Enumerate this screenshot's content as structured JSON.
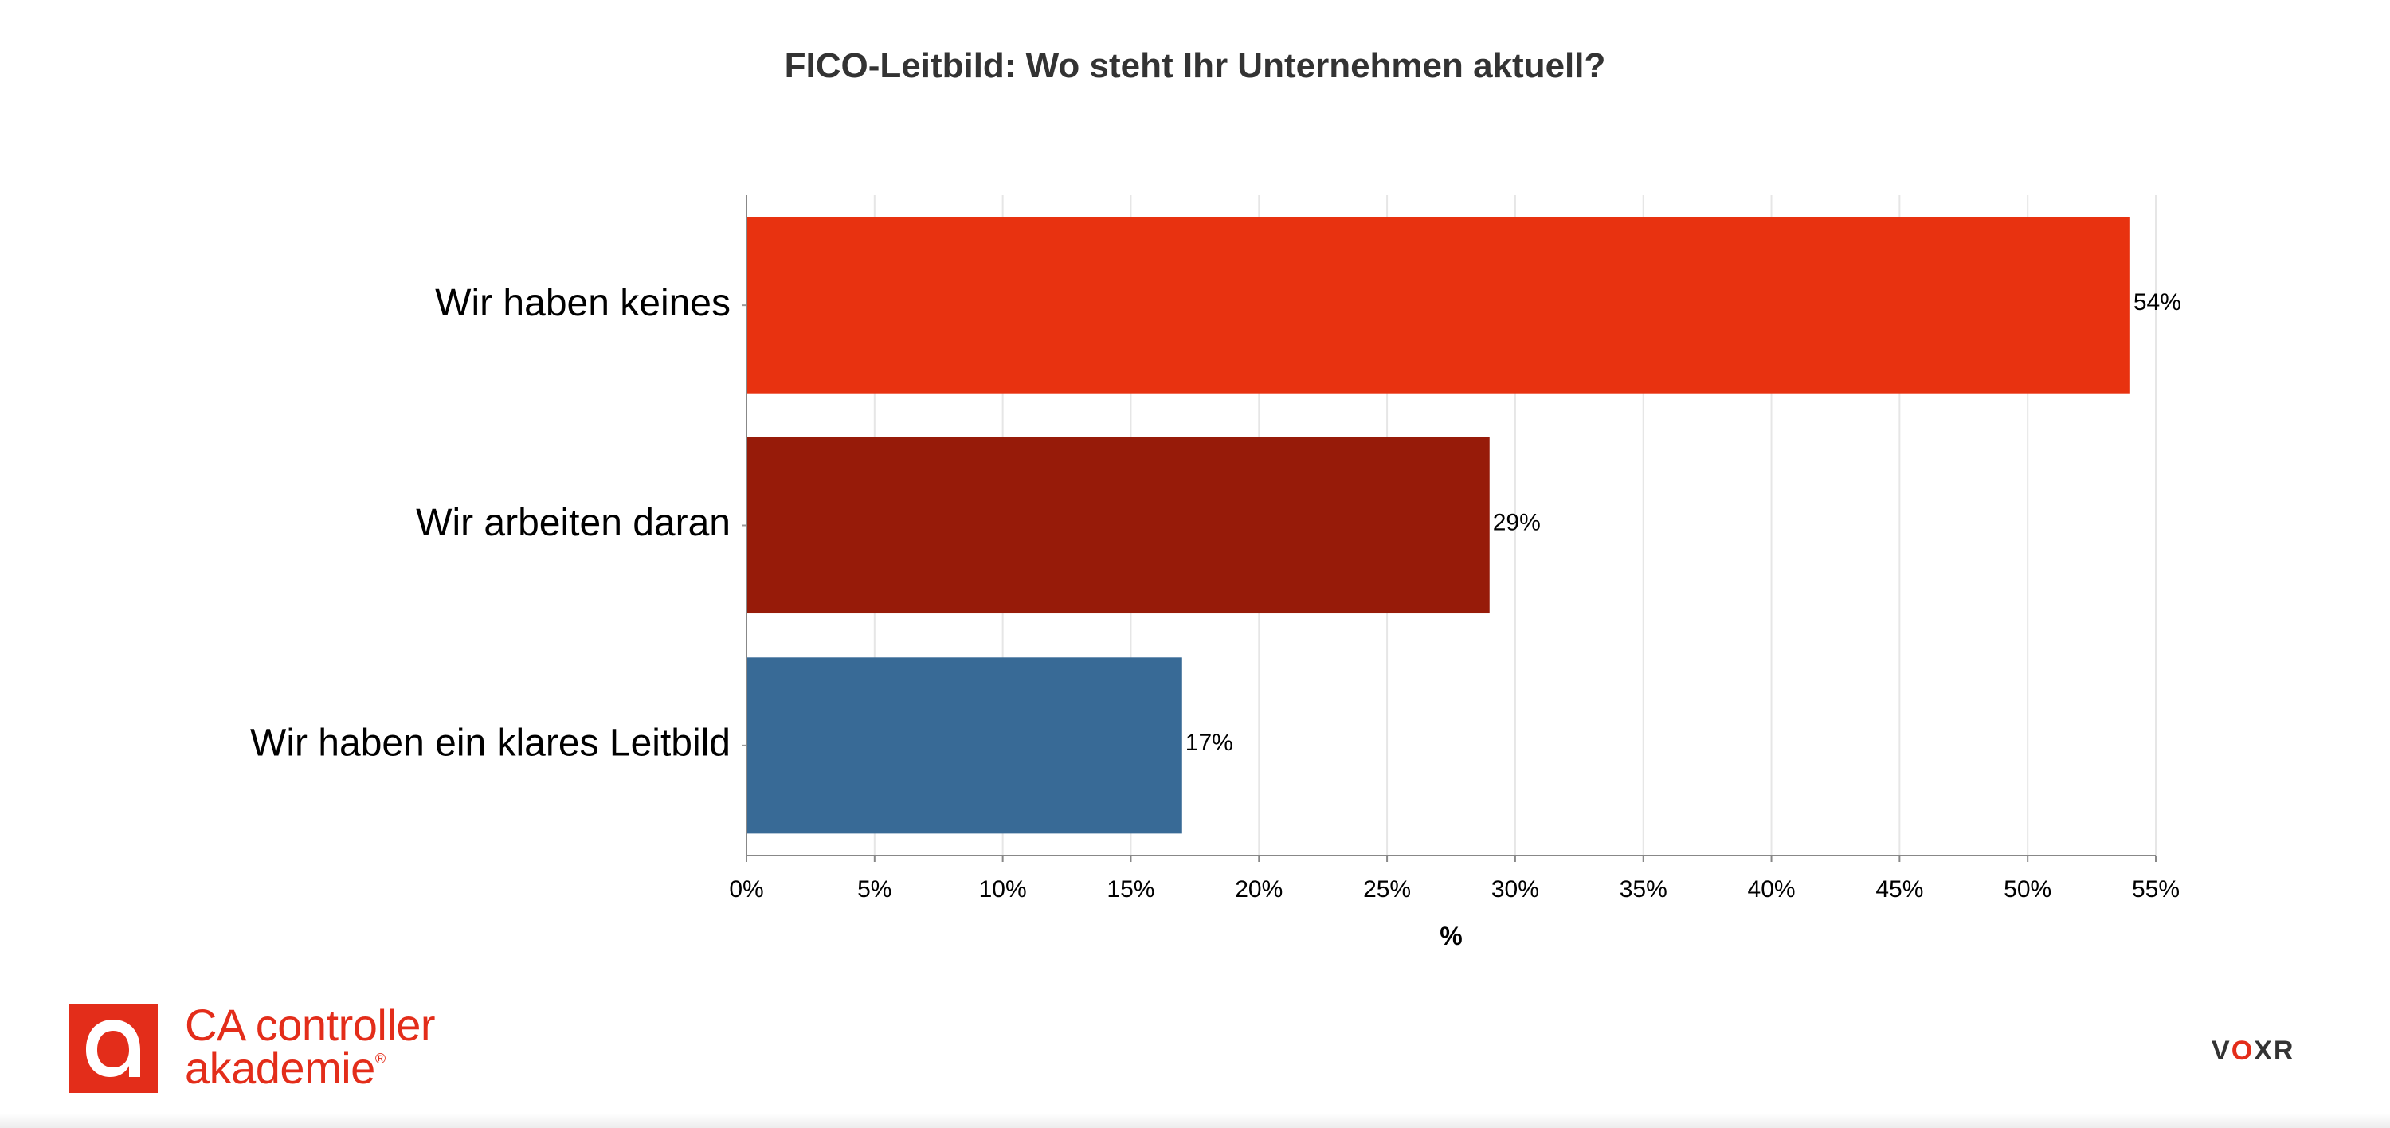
{
  "chart_data": {
    "type": "bar",
    "orientation": "horizontal",
    "title": "FICO-Leitbild: Wo steht Ihr Unternehmen aktuell?",
    "categories": [
      "Wir haben keines",
      "Wir arbeiten daran",
      "Wir haben ein klares Leitbild"
    ],
    "values": [
      54,
      29,
      17
    ],
    "value_labels": [
      "54%",
      "29%",
      "17%"
    ],
    "colors": [
      "#e83210",
      "#971b09",
      "#386a96"
    ],
    "xlabel": "%",
    "xlim": [
      0,
      55
    ],
    "xticks": [
      0,
      5,
      10,
      15,
      20,
      25,
      30,
      35,
      40,
      45,
      50,
      55
    ],
    "xtick_labels": [
      "0%",
      "5%",
      "10%",
      "15%",
      "20%",
      "25%",
      "30%",
      "35%",
      "40%",
      "45%",
      "50%",
      "55%"
    ],
    "grid": true,
    "legend": "none"
  },
  "branding": {
    "logo_line1": "CA controller",
    "logo_line2": "akademie",
    "logo_registered": "®",
    "voxr_left": "V",
    "voxr_mid": "O",
    "voxr_right": "XR"
  }
}
